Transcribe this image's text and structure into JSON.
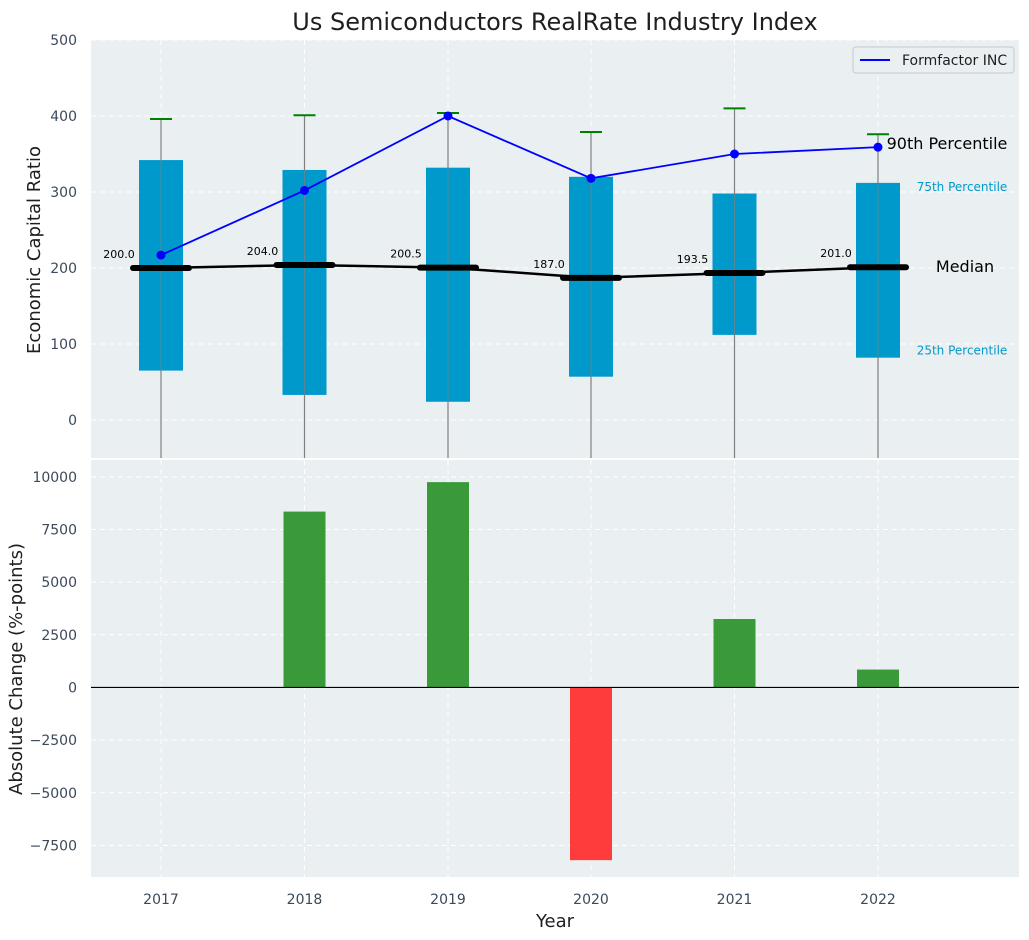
{
  "title": "Us Semiconductors RealRate Industry Index",
  "colors": {
    "panel_bg": "#eaeff1",
    "grid": "#ffffff",
    "box": "#0099cc",
    "whisker": "#808080",
    "cap": "#008000",
    "median": "#000000",
    "company": "#0000ff",
    "positive": "#3a9a3a",
    "negative": "#ff3c3c"
  },
  "chart_data": [
    {
      "type": "box",
      "ylabel": "Economic Capital Ratio",
      "ylim": [
        -50,
        500
      ],
      "yticks": [
        0,
        100,
        200,
        300,
        400,
        500
      ],
      "categories": [
        "2017",
        "2018",
        "2019",
        "2020",
        "2021",
        "2022"
      ],
      "percentile_25": [
        65,
        33,
        24,
        57,
        112,
        82
      ],
      "percentile_75": [
        342,
        329,
        332,
        320,
        298,
        312
      ],
      "percentile_90": [
        396,
        401,
        404,
        379,
        410,
        376
      ],
      "median": [
        200.0,
        204.0,
        200.5,
        187.0,
        193.5,
        201.0
      ],
      "median_labels": [
        "200.0",
        "204.0",
        "200.5",
        "187.0",
        "193.5",
        "201.0"
      ],
      "series": [
        {
          "name": "Formfactor INC",
          "values": [
            217,
            302,
            400,
            318,
            350,
            359
          ]
        }
      ],
      "legend": "top-right",
      "annotations": {
        "p90": "90th Percentile",
        "p75": "75th Percentile",
        "median": "Median",
        "p25": "25th Percentile"
      },
      "grid": true
    },
    {
      "type": "bar",
      "xlabel": "Year",
      "ylabel": "Absolute Change (%-points)",
      "ylim": [
        -9000,
        10800
      ],
      "yticks": [
        -7500,
        -5000,
        -2500,
        0,
        2500,
        5000,
        7500,
        10000
      ],
      "ytick_labels": [
        "−7500",
        "−5000",
        "−2500",
        "0",
        "2500",
        "5000",
        "7500",
        "10000"
      ],
      "categories": [
        "2017",
        "2018",
        "2019",
        "2020",
        "2021",
        "2022"
      ],
      "values": [
        0,
        8350,
        9750,
        -8200,
        3250,
        850
      ],
      "grid": true
    }
  ]
}
